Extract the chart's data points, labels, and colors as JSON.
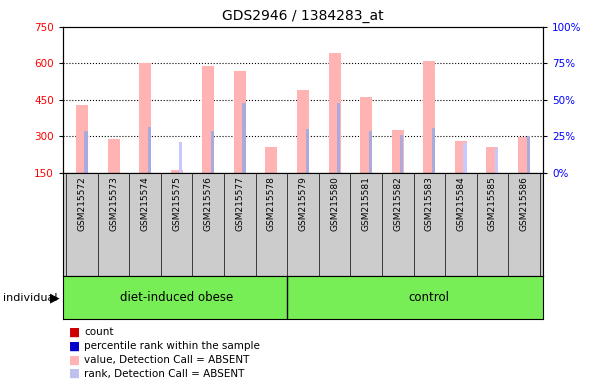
{
  "title": "GDS2946 / 1384283_at",
  "samples": [
    "GSM215572",
    "GSM215573",
    "GSM215574",
    "GSM215575",
    "GSM215576",
    "GSM215577",
    "GSM215578",
    "GSM215579",
    "GSM215580",
    "GSM215581",
    "GSM215582",
    "GSM215583",
    "GSM215584",
    "GSM215585",
    "GSM215586"
  ],
  "absent_values": [
    430,
    290,
    600,
    163,
    590,
    568,
    258,
    490,
    643,
    462,
    328,
    610,
    280,
    258,
    298
  ],
  "absent_ranks": [
    null,
    null,
    null,
    278,
    null,
    null,
    null,
    null,
    null,
    null,
    null,
    null,
    272,
    252,
    null
  ],
  "rank_values": [
    320,
    null,
    340,
    null,
    320,
    435,
    null,
    330,
    435,
    320,
    305,
    335,
    null,
    null,
    300
  ],
  "ylim_left": [
    150,
    750
  ],
  "ylim_right": [
    0,
    100
  ],
  "yticks_left": [
    150,
    300,
    450,
    600,
    750
  ],
  "yticks_right": [
    0,
    25,
    50,
    75,
    100
  ],
  "absent_bar_color": "#ffb3b3",
  "rank_bar_color": "#aaaadd",
  "absent_rank_color": "#c8c8ff",
  "group1_label": "diet-induced obese",
  "group1_count": 7,
  "group2_label": "control",
  "group2_count": 8,
  "group_bg_color": "#77ee55",
  "sample_bg_color": "#cccccc",
  "plot_bg_color": "#ffffff",
  "legend_items": [
    {
      "color": "#cc0000",
      "label": "count"
    },
    {
      "color": "#0000cc",
      "label": "percentile rank within the sample"
    },
    {
      "color": "#ffb3b3",
      "label": "value, Detection Call = ABSENT"
    },
    {
      "color": "#c0c0ee",
      "label": "rank, Detection Call = ABSENT"
    }
  ]
}
